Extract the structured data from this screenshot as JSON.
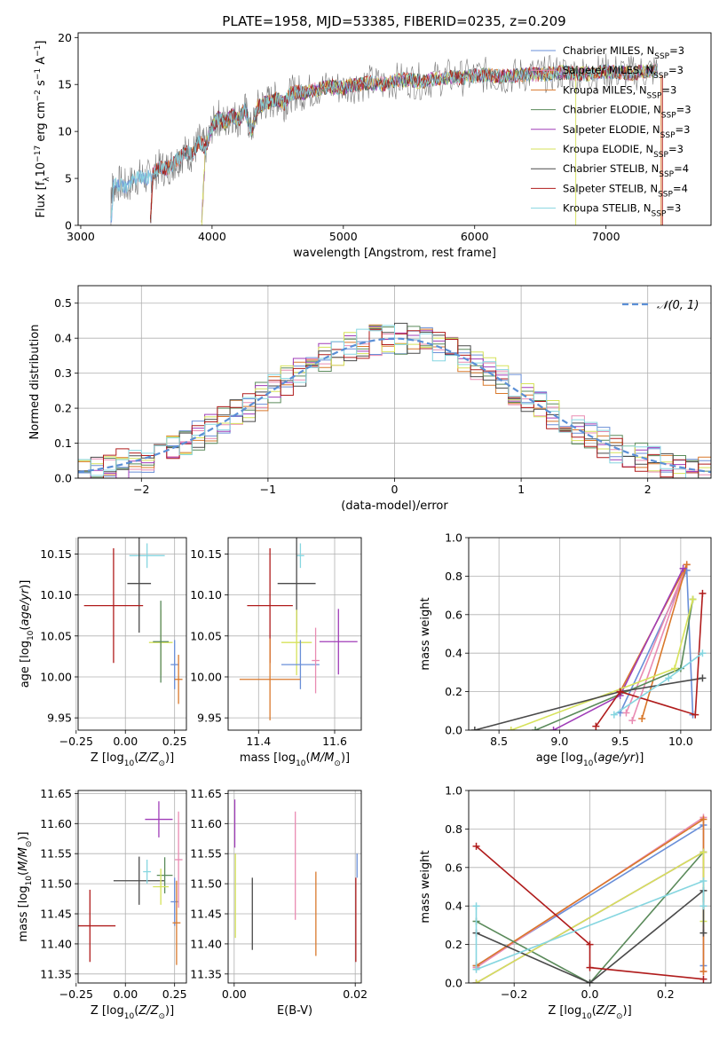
{
  "chart_data": [
    {
      "type": "line",
      "title": "PLATE=1958, MJD=53385, FIBERID=0235, z=0.209",
      "xlabel": "wavelength [Angstrom, rest frame]",
      "ylabel": "Flux [f_λ 10^-17 erg cm^-2 s^-1 A^-1]",
      "xlim": [
        2980,
        7800
      ],
      "ylim": [
        0,
        20.5
      ],
      "xticks": [
        3000,
        4000,
        5000,
        6000,
        7000
      ],
      "yticks": [
        0,
        5,
        10,
        15,
        20
      ],
      "legend_loc": "upper right",
      "data_x": [
        3230,
        3250,
        3300,
        3350,
        3400,
        3450,
        3500,
        3550,
        3600,
        3650,
        3700,
        3750,
        3800,
        3850,
        3900,
        3950,
        4000,
        4050,
        4100,
        4150,
        4200,
        4250,
        4300,
        4350,
        4400,
        4450,
        4500,
        4550,
        4600,
        4650,
        4700,
        4800,
        4900,
        5000,
        5100,
        5200,
        5300,
        5400,
        5500,
        5600,
        5700,
        5800,
        5900,
        6000,
        6100,
        6200,
        6300,
        6400,
        6500,
        6600,
        6700,
        6800,
        6900,
        7000,
        7100,
        7200,
        7300,
        7400
      ],
      "data_y": [
        3.8,
        4.2,
        4.5,
        4.0,
        4.8,
        5.2,
        5.0,
        5.4,
        6.2,
        6.0,
        6.5,
        7.2,
        7.8,
        7.5,
        9.0,
        8.2,
        10.5,
        11.5,
        10.8,
        11.8,
        11.2,
        12.4,
        10.0,
        12.6,
        13.0,
        13.2,
        13.5,
        13.0,
        14.0,
        14.2,
        14.1,
        14.5,
        14.8,
        14.6,
        15.0,
        15.2,
        15.0,
        15.4,
        15.5,
        15.3,
        15.6,
        15.8,
        15.7,
        15.9,
        16.0,
        15.8,
        15.9,
        16.1,
        16.0,
        16.2,
        16.3,
        16.1,
        16.2,
        16.4,
        16.3,
        16.2,
        16.4,
        16.5
      ],
      "legend": [
        {
          "label": "Chabrier MILES, N",
          "sub": "SSP",
          "suffix": "=3",
          "color": "#6a8fd8"
        },
        {
          "label": "Salpeter MILES, N",
          "sub": "SSP",
          "suffix": "=3",
          "color": "#e98bb2"
        },
        {
          "label": "Kroupa MILES, N",
          "sub": "SSP",
          "suffix": "=3",
          "color": "#d9782b"
        },
        {
          "label": "Chabrier ELODIE, N",
          "sub": "SSP",
          "suffix": "=3",
          "color": "#5a8a5a"
        },
        {
          "label": "Salpeter ELODIE, N",
          "sub": "SSP",
          "suffix": "=3",
          "color": "#a03db8"
        },
        {
          "label": "Kroupa ELODIE, N",
          "sub": "SSP",
          "suffix": "=3",
          "color": "#d6e25a"
        },
        {
          "label": "Chabrier STELIB, N",
          "sub": "SSP",
          "suffix": "=4",
          "color": "#4a4a4a"
        },
        {
          "label": "Salpeter STELIB, N",
          "sub": "SSP",
          "suffix": "=4",
          "color": "#b01c1c"
        },
        {
          "label": "Kroupa STELIB, N",
          "sub": "SSP",
          "suffix": "=3",
          "color": "#86d6e0"
        }
      ]
    },
    {
      "type": "line",
      "xlabel": "(data-model)/error",
      "ylabel": "Normed distribution",
      "xlim": [
        -2.5,
        2.5
      ],
      "ylim": [
        0,
        0.55
      ],
      "xticks": [
        -2,
        -1,
        0,
        1,
        2
      ],
      "yticks": [
        0.0,
        0.1,
        0.2,
        0.3,
        0.4,
        0.5
      ],
      "legend": "𝒩(0, 1)",
      "bin_centers": [
        -2.4,
        -2.2,
        -2.0,
        -1.8,
        -1.6,
        -1.4,
        -1.2,
        -1.0,
        -0.8,
        -0.6,
        -0.4,
        -0.2,
        0.0,
        0.2,
        0.4,
        0.6,
        0.8,
        1.0,
        1.2,
        1.4,
        1.6,
        1.8,
        2.0,
        2.2,
        2.4
      ],
      "histogram_values": [
        0.02,
        0.03,
        0.05,
        0.07,
        0.1,
        0.14,
        0.18,
        0.23,
        0.29,
        0.34,
        0.38,
        0.42,
        0.44,
        0.41,
        0.38,
        0.34,
        0.29,
        0.24,
        0.19,
        0.14,
        0.1,
        0.07,
        0.05,
        0.03,
        0.02
      ]
    },
    {
      "type": "scatter",
      "xlabel": "Z [log10(Z/Z⊙)]",
      "ylabel": "age  [log10(age/yr)]",
      "xlim": [
        -0.24,
        0.31
      ],
      "ylim": [
        9.935,
        10.17
      ],
      "xticks": [
        -0.25,
        0.0,
        0.25
      ],
      "yticks": [
        9.95,
        10.0,
        10.05,
        10.1,
        10.15
      ],
      "points": [
        {
          "x": 0.11,
          "y": 10.148,
          "xerr": 0.09,
          "yerr": 0.015,
          "color": "#86d6e0"
        },
        {
          "x": 0.07,
          "y": 10.114,
          "xerr": 0.06,
          "yerr": 0.06,
          "color": "#4a4a4a"
        },
        {
          "x": -0.06,
          "y": 10.087,
          "xerr": 0.15,
          "yerr": 0.07,
          "color": "#b01c1c"
        },
        {
          "x": 0.18,
          "y": 10.042,
          "xerr": 0.06,
          "yerr": 0.04,
          "color": "#d6e25a"
        },
        {
          "x": 0.18,
          "y": 10.043,
          "xerr": 0.04,
          "yerr": 0.05,
          "color": "#5a8a5a"
        },
        {
          "x": 0.25,
          "y": 10.015,
          "xerr": 0.02,
          "yerr": 0.03,
          "color": "#6a8fd8"
        },
        {
          "x": 0.27,
          "y": 9.997,
          "xerr": 0.02,
          "yerr": 0.03,
          "color": "#d9782b"
        }
      ]
    },
    {
      "type": "scatter",
      "xlabel": "mass [log10(M/M⊙)]",
      "ylabel": "",
      "xlim": [
        11.32,
        11.67
      ],
      "ylim": [
        9.935,
        10.17
      ],
      "xticks": [
        11.4,
        11.6
      ],
      "yticks": [
        9.95,
        10.0,
        10.05,
        10.1,
        10.15
      ],
      "points": [
        {
          "x": 11.51,
          "y": 10.148,
          "xerr": 0.01,
          "yerr": 0.015,
          "color": "#86d6e0"
        },
        {
          "x": 11.5,
          "y": 10.114,
          "xerr": 0.05,
          "yerr": 0.06,
          "color": "#4a4a4a"
        },
        {
          "x": 11.43,
          "y": 10.087,
          "xerr": 0.06,
          "yerr": 0.07,
          "color": "#b01c1c"
        },
        {
          "x": 11.61,
          "y": 10.043,
          "xerr": 0.05,
          "yerr": 0.04,
          "color": "#a03db8"
        },
        {
          "x": 11.5,
          "y": 10.042,
          "xerr": 0.04,
          "yerr": 0.04,
          "color": "#d6e25a"
        },
        {
          "x": 11.51,
          "y": 10.015,
          "xerr": 0.05,
          "yerr": 0.03,
          "color": "#6a8fd8"
        },
        {
          "x": 11.43,
          "y": 9.997,
          "xerr": 0.08,
          "yerr": 0.05,
          "color": "#d9782b"
        },
        {
          "x": 11.55,
          "y": 10.02,
          "xerr": 0.01,
          "yerr": 0.04,
          "color": "#e98bb2"
        }
      ]
    },
    {
      "type": "line",
      "xlabel": "age  [log10(age/yr)]",
      "ylabel": "mass weight",
      "xlim": [
        8.25,
        10.25
      ],
      "ylim": [
        0,
        1.0
      ],
      "xticks": [
        8.5,
        9.0,
        9.5,
        10.0
      ],
      "yticks": [
        0.0,
        0.2,
        0.4,
        0.6,
        0.8,
        1.0
      ],
      "series": [
        {
          "color": "#6a8fd8",
          "x": [
            9.5,
            10.05,
            10.1
          ],
          "y": [
            0.09,
            0.83,
            0.08
          ]
        },
        {
          "color": "#e98bb2",
          "x": [
            9.55,
            10.05,
            9.6
          ],
          "y": [
            0.09,
            0.86,
            0.05
          ]
        },
        {
          "color": "#d9782b",
          "x": [
            9.5,
            10.05,
            9.68
          ],
          "y": [
            0.2,
            0.86,
            0.06
          ]
        },
        {
          "color": "#5a8a5a",
          "x": [
            8.8,
            10.0,
            10.1
          ],
          "y": [
            0.0,
            0.32,
            0.68
          ]
        },
        {
          "color": "#a03db8",
          "x": [
            8.95,
            9.5,
            10.02
          ],
          "y": [
            0.0,
            0.18,
            0.84
          ]
        },
        {
          "color": "#d6e25a",
          "x": [
            8.6,
            9.95,
            10.1
          ],
          "y": [
            0.0,
            0.32,
            0.68
          ]
        },
        {
          "color": "#4a4a4a",
          "x": [
            8.3,
            9.5,
            10.18
          ],
          "y": [
            0.0,
            0.2,
            0.27
          ]
        },
        {
          "color": "#b01c1c",
          "x": [
            9.3,
            9.5,
            10.12,
            10.18
          ],
          "y": [
            0.02,
            0.2,
            0.08,
            0.71
          ]
        },
        {
          "color": "#86d6e0",
          "x": [
            9.45,
            9.9,
            10.18
          ],
          "y": [
            0.08,
            0.27,
            0.4
          ]
        }
      ]
    },
    {
      "type": "scatter",
      "xlabel": "Z [log10(Z/Z⊙)]",
      "ylabel": "mass [log10(M/M⊙)]",
      "xlim": [
        -0.24,
        0.31
      ],
      "ylim": [
        11.335,
        11.655
      ],
      "xticks": [
        -0.25,
        0.0,
        0.25
      ],
      "yticks": [
        11.35,
        11.4,
        11.45,
        11.5,
        11.55,
        11.6,
        11.65
      ],
      "points": [
        {
          "x": 0.17,
          "y": 11.607,
          "xerr": 0.07,
          "yerr": 0.03,
          "color": "#a03db8"
        },
        {
          "x": 0.07,
          "y": 11.505,
          "xerr": 0.13,
          "yerr": 0.04,
          "color": "#4a4a4a"
        },
        {
          "x": -0.18,
          "y": 11.43,
          "xerr": 0.13,
          "yerr": 0.06,
          "color": "#b01c1c"
        },
        {
          "x": 0.2,
          "y": 11.514,
          "xerr": 0.04,
          "yerr": 0.03,
          "color": "#5a8a5a"
        },
        {
          "x": 0.18,
          "y": 11.495,
          "xerr": 0.04,
          "yerr": 0.03,
          "color": "#d6e25a"
        },
        {
          "x": 0.25,
          "y": 11.47,
          "xerr": 0.02,
          "yerr": 0.04,
          "color": "#6a8fd8"
        },
        {
          "x": 0.26,
          "y": 11.435,
          "xerr": 0.02,
          "yerr": 0.07,
          "color": "#d9782b"
        },
        {
          "x": 0.11,
          "y": 11.52,
          "xerr": 0.02,
          "yerr": 0.02,
          "color": "#86d6e0"
        },
        {
          "x": 0.27,
          "y": 11.54,
          "xerr": 0.02,
          "yerr": 0.08,
          "color": "#e98bb2"
        }
      ]
    },
    {
      "type": "scatter",
      "xlabel": "E(B-V)",
      "ylabel": "",
      "xlim": [
        -0.001,
        0.021
      ],
      "ylim": [
        11.335,
        11.655
      ],
      "xticks": [
        0.0,
        0.02
      ],
      "yticks": [
        11.35,
        11.4,
        11.45,
        11.5,
        11.55,
        11.6,
        11.65
      ],
      "points": [
        {
          "x": 0.0001,
          "y": 11.6,
          "yerr": 0.04,
          "color": "#a03db8"
        },
        {
          "x": 0.0002,
          "y": 11.48,
          "yerr": 0.07,
          "color": "#d6e25a"
        },
        {
          "x": 0.003,
          "y": 11.45,
          "yerr": 0.06,
          "color": "#4a4a4a"
        },
        {
          "x": 0.0101,
          "y": 11.53,
          "yerr": 0.09,
          "color": "#e98bb2"
        },
        {
          "x": 0.0135,
          "y": 11.45,
          "yerr": 0.07,
          "color": "#d9782b"
        },
        {
          "x": 0.0201,
          "y": 11.44,
          "yerr": 0.07,
          "color": "#b01c1c"
        },
        {
          "x": 0.0203,
          "y": 11.53,
          "yerr": 0.02,
          "color": "#6a8fd8"
        }
      ]
    },
    {
      "type": "line",
      "xlabel": "Z [log10(Z/Z⊙)]",
      "ylabel": "mass weight",
      "xlim": [
        -0.32,
        0.32
      ],
      "ylim": [
        0,
        1.0
      ],
      "xticks": [
        -0.2,
        0.0,
        0.2
      ],
      "yticks": [
        0.0,
        0.2,
        0.4,
        0.6,
        0.8,
        1.0
      ],
      "series": [
        {
          "color": "#6a8fd8",
          "x": [
            -0.3,
            0.3,
            0.3
          ],
          "y": [
            0.09,
            0.82,
            0.09
          ]
        },
        {
          "color": "#e98bb2",
          "x": [
            -0.3,
            0.3,
            0.3
          ],
          "y": [
            0.08,
            0.86,
            0.06
          ]
        },
        {
          "color": "#d9782b",
          "x": [
            -0.3,
            0.3,
            0.3
          ],
          "y": [
            0.09,
            0.85,
            0.06
          ]
        },
        {
          "color": "#5a8a5a",
          "x": [
            -0.3,
            0.0,
            0.3
          ],
          "y": [
            0.32,
            0.0,
            0.68
          ]
        },
        {
          "color": "#a03db8",
          "x": [
            -0.3,
            0.3
          ],
          "y": [
            0.0,
            0.68
          ]
        },
        {
          "color": "#d6e25a",
          "x": [
            -0.3,
            0.3,
            0.3
          ],
          "y": [
            0.0,
            0.68,
            0.32
          ]
        },
        {
          "color": "#4a4a4a",
          "x": [
            -0.3,
            0.0,
            0.3,
            0.3
          ],
          "y": [
            0.26,
            0.0,
            0.48,
            0.26
          ]
        },
        {
          "color": "#b01c1c",
          "x": [
            -0.3,
            0.0,
            0.0,
            0.3
          ],
          "y": [
            0.71,
            0.2,
            0.08,
            0.02
          ]
        },
        {
          "color": "#86d6e0",
          "x": [
            -0.3,
            -0.3,
            0.3,
            0.3
          ],
          "y": [
            0.4,
            0.07,
            0.53,
            0.4
          ]
        }
      ]
    }
  ]
}
